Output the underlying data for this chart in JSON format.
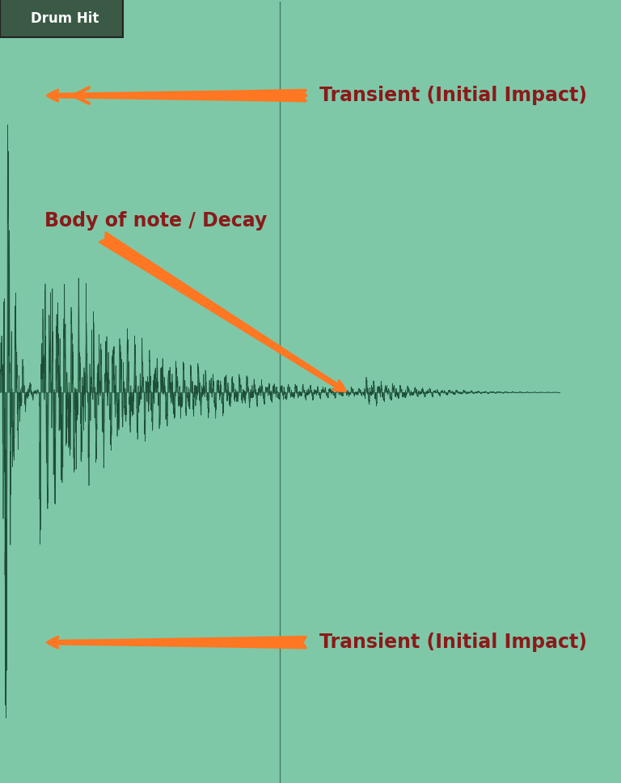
{
  "background_color": "#7ec8a8",
  "waveform_color": "#1a4a35",
  "waveform_fill_color": "#2a6645",
  "title_box_color": "#3a5a45",
  "title_text": "Drum Hit",
  "title_text_color": "#ffffff",
  "arrow_color": "#ff7722",
  "label_color_transient": "#8b1a1a",
  "label_color_body": "#8b1a1a",
  "label_transient1": "Transient (Initial Impact)",
  "label_transient2": "Transient (Initial Impact)",
  "label_body": "Body of note / Decay",
  "figsize": [
    7.68,
    9.68
  ],
  "dpi": 100
}
